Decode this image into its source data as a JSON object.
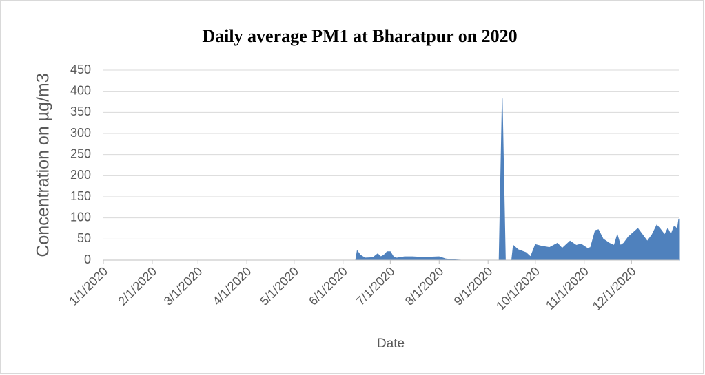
{
  "chart_data": {
    "type": "area",
    "title": "Daily average PM1 at Bharatpur on 2020",
    "x_label": "Date",
    "y_label": "Concentration on µg/m3",
    "x": [
      "1/1/2020",
      "6/9/2020",
      "6/10/2020",
      "6/12/2020",
      "6/15/2020",
      "6/20/2020",
      "6/23/2020",
      "6/25/2020",
      "6/27/2020",
      "6/29/2020",
      "7/1/2020",
      "7/3/2020",
      "7/5/2020",
      "7/10/2020",
      "7/15/2020",
      "7/20/2020",
      "7/25/2020",
      "8/1/2020",
      "8/5/2020",
      "8/10/2020",
      "8/15/2020",
      "9/8/2020",
      "9/10/2020",
      "9/12/2020",
      "9/16/2020",
      "9/17/2020",
      "9/20/2020",
      "9/25/2020",
      "9/28/2020",
      "10/1/2020",
      "10/5/2020",
      "10/10/2020",
      "10/15/2020",
      "10/18/2020",
      "10/23/2020",
      "10/27/2020",
      "10/30/2020",
      "11/3/2020",
      "11/5/2020",
      "11/8/2020",
      "11/10/2020",
      "11/13/2020",
      "11/17/2020",
      "11/20/2020",
      "11/22/2020",
      "11/24/2020",
      "11/26/2020",
      "11/29/2020",
      "12/2/2020",
      "12/5/2020",
      "12/8/2020",
      "12/11/2020",
      "12/14/2020",
      "12/17/2020",
      "12/19/2020",
      "12/22/2020",
      "12/24/2020",
      "12/26/2020",
      "12/28/2020",
      "12/29/2020",
      "12/30/2020",
      "12/31/2020"
    ],
    "series": [
      {
        "name": "PM1",
        "color": "#4f81bd",
        "values": [
          0,
          0,
          22,
          12,
          5,
          6,
          15,
          8,
          12,
          20,
          20,
          8,
          5,
          8,
          8,
          7,
          7,
          8,
          3,
          1,
          0,
          0,
          383,
          0,
          0,
          35,
          25,
          18,
          8,
          37,
          33,
          30,
          40,
          28,
          45,
          35,
          38,
          28,
          30,
          70,
          72,
          50,
          40,
          35,
          60,
          35,
          40,
          55,
          65,
          75,
          60,
          45,
          60,
          83,
          75,
          60,
          75,
          60,
          80,
          78,
          72,
          98
        ]
      }
    ],
    "xlim": [
      "1/1/2020",
      "12/31/2020"
    ],
    "xticks": [
      "1/1/2020",
      "2/1/2020",
      "3/1/2020",
      "4/1/2020",
      "5/1/2020",
      "6/1/2020",
      "7/1/2020",
      "8/1/2020",
      "9/1/2020",
      "10/1/2020",
      "11/1/2020",
      "12/1/2020"
    ],
    "ylim": [
      0,
      450
    ],
    "yticks": [
      0,
      50,
      100,
      150,
      200,
      250,
      300,
      350,
      400,
      450
    ],
    "grid": true
  }
}
